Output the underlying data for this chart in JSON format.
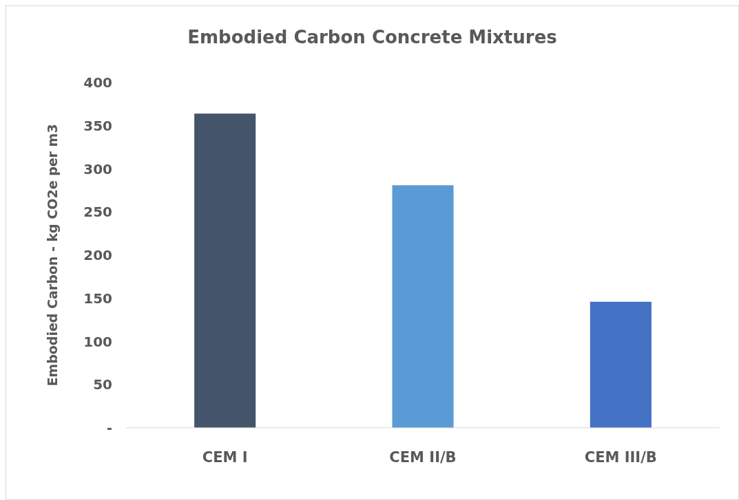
{
  "chart_data": {
    "type": "bar",
    "title": "Embodied Carbon Concrete Mixtures",
    "ylabel": "Embodied Carbon - kg CO2e per m3",
    "categories": [
      "CEM I",
      "CEM II/B",
      "CEM III/B"
    ],
    "values": [
      364,
      281,
      146
    ],
    "colors": [
      "#44546a",
      "#5b9bd5",
      "#4472c4"
    ],
    "ylim": [
      0,
      400
    ],
    "yticks": [
      {
        "value": 0,
        "label": "-"
      },
      50,
      100,
      150,
      200,
      250,
      300,
      350,
      400
    ],
    "grid": false
  }
}
